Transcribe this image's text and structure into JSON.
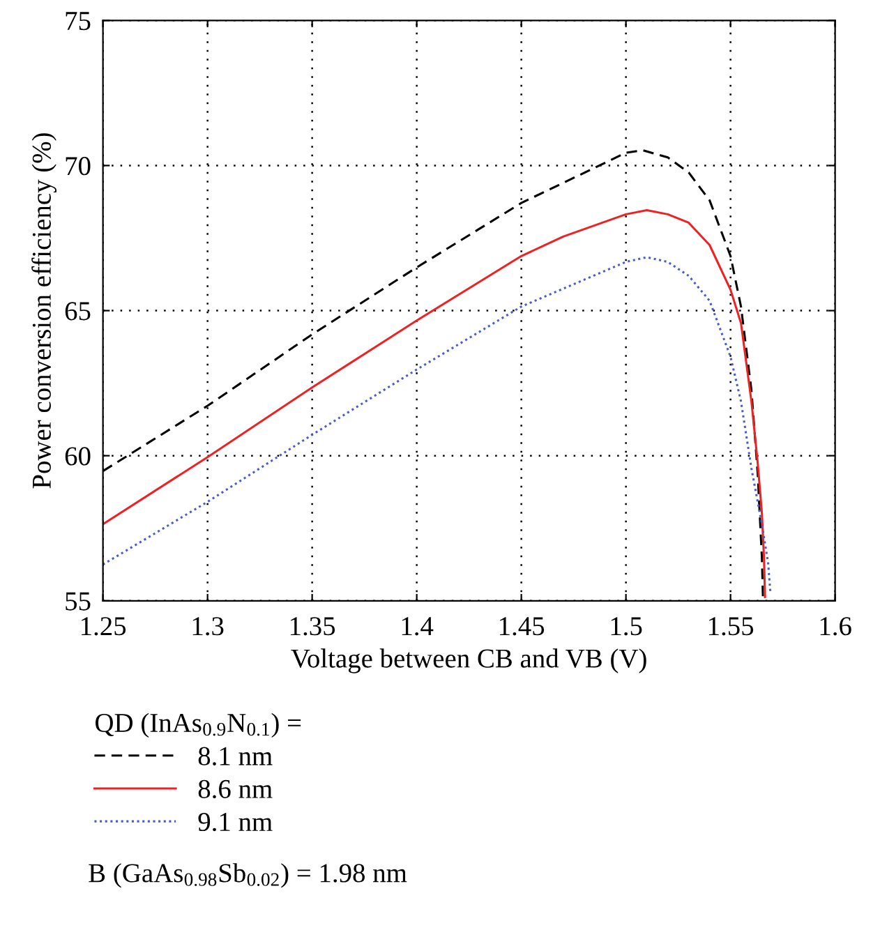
{
  "chart_data": {
    "type": "line",
    "xlabel": "Voltage between CB and VB (V)",
    "ylabel": "Power conversion efficiency (%)",
    "legend_title": "QD (InAs$_{0.9}$N$_{0.1}$) =",
    "annotations": [
      "B (GaAs$_{0.98}$Sb$_{0.02}$) = 1.98 nm"
    ],
    "xlim": [
      1.25,
      1.6
    ],
    "xticks": [
      1.25,
      1.3,
      1.35,
      1.4,
      1.45,
      1.5,
      1.55,
      1.6
    ],
    "ylim": [
      55,
      75
    ],
    "yticks": [
      55,
      60,
      65,
      70,
      75
    ],
    "grid": true,
    "legend": "bottom",
    "marker": "none",
    "series": [
      {
        "name": "8.1 nm",
        "color": "#000000",
        "line_style": "dashed",
        "x": [
          1.25,
          1.3,
          1.35,
          1.4,
          1.45,
          1.5,
          1.508,
          1.52,
          1.53,
          1.54,
          1.55,
          1.555,
          1.56,
          1.563,
          1.565,
          1.5655
        ],
        "values": [
          59.47,
          61.72,
          64.18,
          66.49,
          68.71,
          70.44,
          70.53,
          70.28,
          69.76,
          68.8,
          66.88,
          65.14,
          62.26,
          59.37,
          56.48,
          55.1
        ]
      },
      {
        "name": "8.6 nm",
        "color": "#ee2222",
        "line_style": "solid",
        "x": [
          1.25,
          1.3,
          1.35,
          1.4,
          1.45,
          1.47,
          1.5,
          1.51,
          1.52,
          1.53,
          1.54,
          1.55,
          1.555,
          1.56,
          1.563,
          1.565,
          1.566,
          1.5665
        ],
        "values": [
          57.64,
          59.95,
          62.35,
          64.66,
          66.88,
          67.55,
          68.32,
          68.46,
          68.32,
          68.03,
          67.26,
          65.72,
          64.57,
          61.87,
          59.75,
          58.02,
          56.48,
          55.13
        ]
      },
      {
        "name": "9.1 nm",
        "color": "#4a5cc8",
        "line_style": "dotted",
        "x": [
          1.25,
          1.3,
          1.35,
          1.4,
          1.45,
          1.5,
          1.51,
          1.52,
          1.53,
          1.54,
          1.55,
          1.555,
          1.56,
          1.565,
          1.568,
          1.569
        ],
        "values": [
          56.25,
          58.41,
          60.72,
          62.97,
          65.14,
          66.68,
          66.84,
          66.68,
          66.2,
          65.34,
          63.41,
          61.87,
          59.56,
          57.64,
          56.29,
          55.33
        ]
      }
    ]
  }
}
